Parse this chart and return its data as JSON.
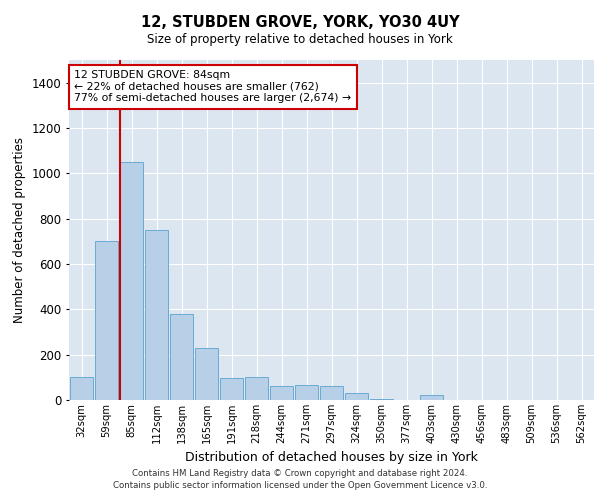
{
  "title1": "12, STUBDEN GROVE, YORK, YO30 4UY",
  "title2": "Size of property relative to detached houses in York",
  "xlabel": "Distribution of detached houses by size in York",
  "ylabel": "Number of detached properties",
  "bar_color": "#b8cfe8",
  "bar_edge_color": "#6aaad4",
  "background_color": "#dce6f1",
  "grid_color": "#ffffff",
  "annotation_line_color": "#cc0000",
  "annotation_box_color": "#cc0000",
  "categories": [
    "32sqm",
    "59sqm",
    "85sqm",
    "112sqm",
    "138sqm",
    "165sqm",
    "191sqm",
    "218sqm",
    "244sqm",
    "271sqm",
    "297sqm",
    "324sqm",
    "350sqm",
    "377sqm",
    "403sqm",
    "430sqm",
    "456sqm",
    "483sqm",
    "509sqm",
    "536sqm",
    "562sqm"
  ],
  "values": [
    100,
    700,
    1050,
    750,
    380,
    230,
    95,
    100,
    60,
    65,
    60,
    30,
    5,
    0,
    20,
    0,
    0,
    0,
    0,
    0,
    0
  ],
  "ylim": [
    0,
    1500
  ],
  "yticks": [
    0,
    200,
    400,
    600,
    800,
    1000,
    1200,
    1400
  ],
  "annotation_text": "12 STUBDEN GROVE: 84sqm\n← 22% of detached houses are smaller (762)\n77% of semi-detached houses are larger (2,674) →",
  "footnote1": "Contains HM Land Registry data © Crown copyright and database right 2024.",
  "footnote2": "Contains public sector information licensed under the Open Government Licence v3.0."
}
